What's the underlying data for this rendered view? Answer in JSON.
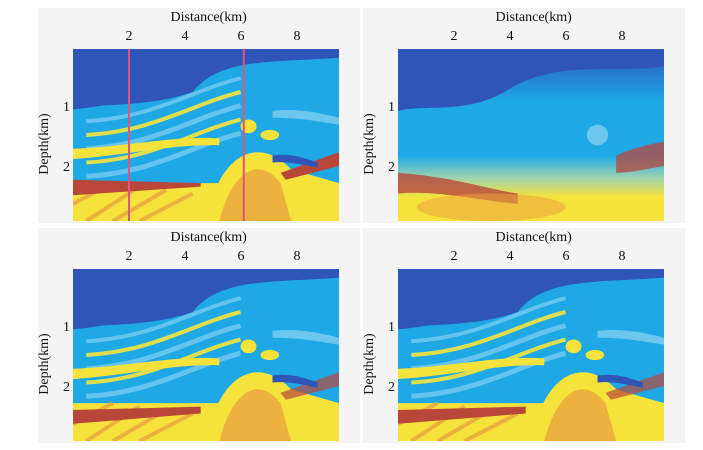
{
  "chart_data": [
    {
      "type": "heatmap",
      "position_label": "top-left",
      "xlabel": "Distance(km)",
      "ylabel": "Depth(km)",
      "xticks": [
        2,
        4,
        6,
        8
      ],
      "yticks": [
        1,
        2
      ],
      "xlim": [
        0,
        9.5
      ],
      "ylim": [
        0,
        2.9
      ],
      "vertical_lines_x": [
        2.0,
        6.1
      ],
      "lines_color": "#e0567a"
    },
    {
      "type": "heatmap",
      "position_label": "top-right",
      "xlabel": "Distance(km)",
      "ylabel": "Depth(km)",
      "xticks": [
        2,
        4,
        6,
        8
      ],
      "yticks": [
        1,
        2
      ],
      "xlim": [
        0,
        9.5
      ],
      "ylim": [
        0,
        2.9
      ]
    },
    {
      "type": "heatmap",
      "position_label": "bottom-left",
      "xlabel": "Distance(km)",
      "ylabel": "Depth(km)",
      "xticks": [
        2,
        4,
        6,
        8
      ],
      "yticks": [
        1,
        2
      ],
      "xlim": [
        0,
        9.5
      ],
      "ylim": [
        0,
        2.9
      ]
    },
    {
      "type": "heatmap",
      "position_label": "bottom-right",
      "xlabel": "Distance(km)",
      "ylabel": "Depth(km)",
      "xticks": [
        2,
        4,
        6,
        8
      ],
      "yticks": [
        1,
        2
      ],
      "xlim": [
        0,
        9.5
      ],
      "ylim": [
        0,
        2.9
      ]
    }
  ],
  "colormap": {
    "dark_blue": "#2f55b8",
    "mid_blue": "#1ea8e6",
    "light_blue": "#6cc7ee",
    "yellow": "#f5e33c",
    "orange": "#e9a23e",
    "red_brown": "#b8473a",
    "pink_line": "#e0567a"
  }
}
